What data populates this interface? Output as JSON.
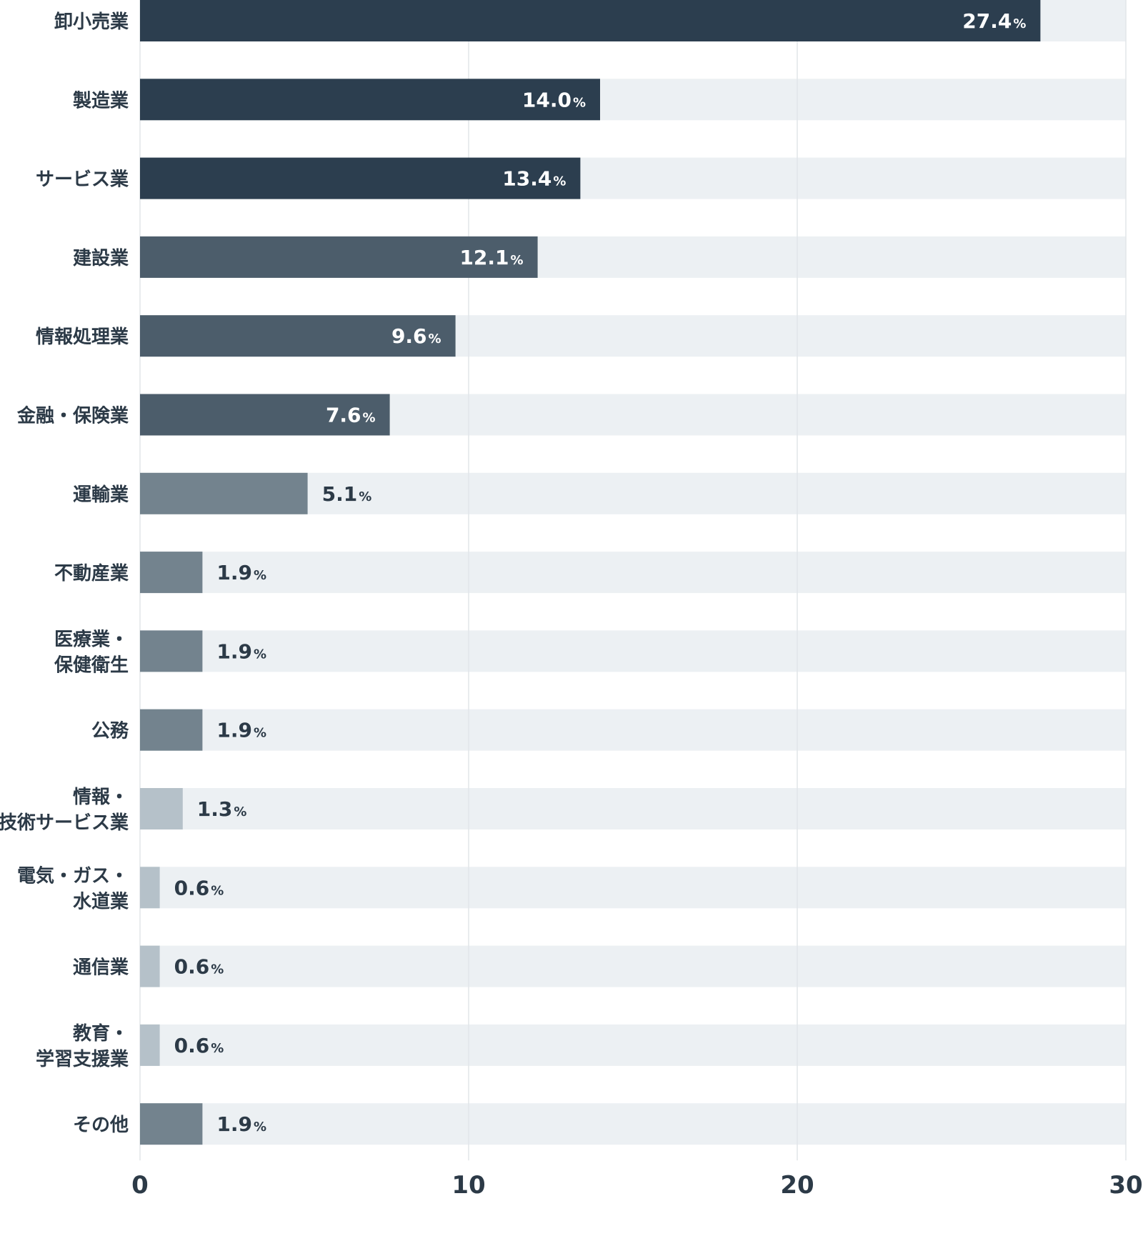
{
  "chart_data": {
    "type": "bar",
    "orientation": "horizontal",
    "categories": [
      [
        "卸小売業"
      ],
      [
        "製造業"
      ],
      [
        "サービス業"
      ],
      [
        "建設業"
      ],
      [
        "情報処理業"
      ],
      [
        "金融・保険業"
      ],
      [
        "運輸業"
      ],
      [
        "不動産業"
      ],
      [
        "医療業・",
        "保健衛生"
      ],
      [
        "公務"
      ],
      [
        "情報・",
        "技術サービス業"
      ],
      [
        "電気・ガス・",
        "水道業"
      ],
      [
        "通信業"
      ],
      [
        "教育・",
        "学習支援業"
      ],
      [
        "その他"
      ]
    ],
    "values": [
      27.4,
      14.0,
      13.4,
      12.1,
      9.6,
      7.6,
      5.1,
      1.9,
      1.9,
      1.9,
      1.3,
      0.6,
      0.6,
      0.6,
      1.9
    ],
    "value_labels": [
      "27.4",
      "14.0",
      "13.4",
      "12.1",
      "9.6",
      "7.6",
      "5.1",
      "1.9",
      "1.9",
      "1.9",
      "1.3",
      "0.6",
      "0.6",
      "0.6",
      "1.9"
    ],
    "unit": "%",
    "xlim": [
      0,
      30
    ],
    "xticks": [
      "0",
      "10",
      "20",
      "30"
    ],
    "grid": true,
    "colors": {
      "track": "#ecf0f3",
      "grid": "#e2e6e9",
      "shades": [
        "#2c3e4f",
        "#4c5d6b",
        "#73838e",
        "#b5c1c9"
      ],
      "label_dark": "#2c3a47",
      "label_light": "#ffffff"
    },
    "bar_shade_index": [
      0,
      0,
      0,
      1,
      1,
      1,
      2,
      2,
      2,
      2,
      3,
      3,
      3,
      3,
      2
    ]
  }
}
